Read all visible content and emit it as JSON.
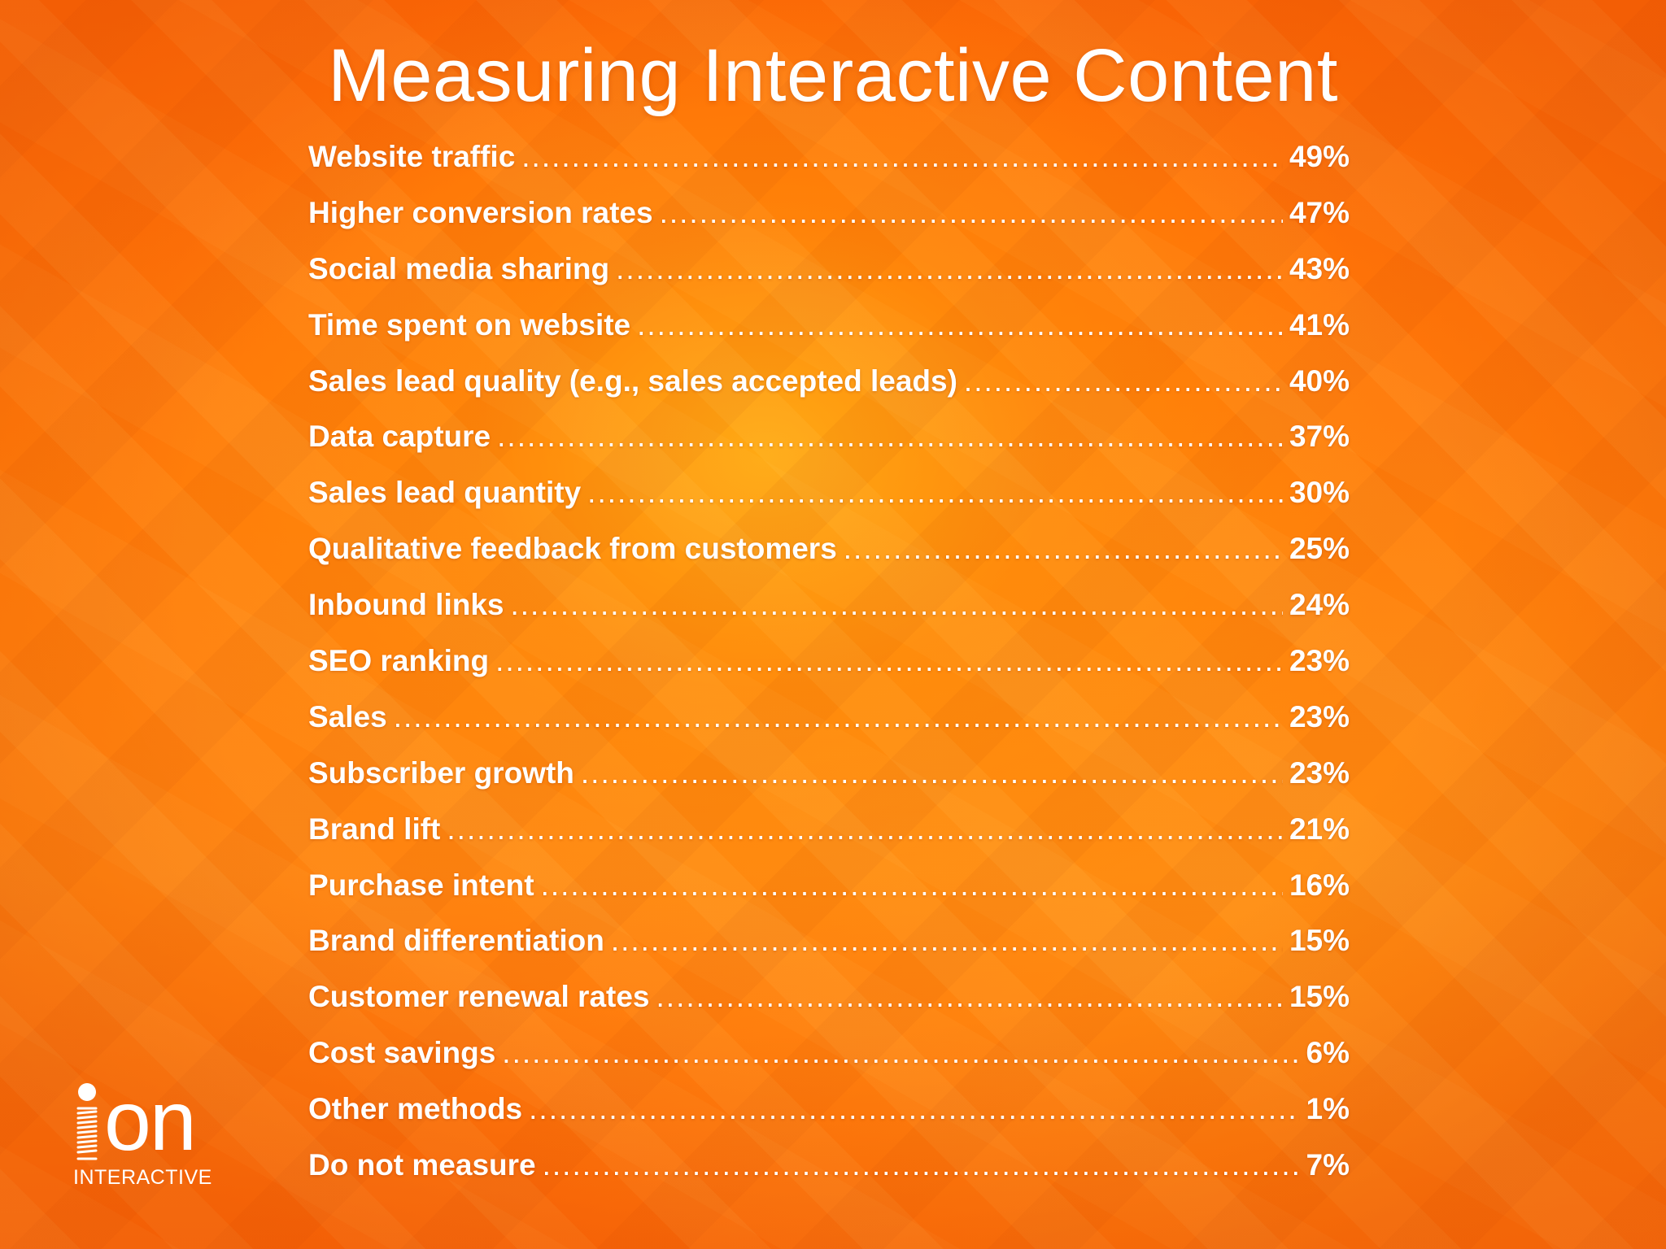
{
  "slide": {
    "title": "Measuring Interactive Content"
  },
  "stats": [
    {
      "label": "Website traffic",
      "value": "49%"
    },
    {
      "label": "Higher conversion rates",
      "value": "47%"
    },
    {
      "label": "Social media sharing",
      "value": "43%"
    },
    {
      "label": "Time spent on website",
      "value": "41%"
    },
    {
      "label": "Sales lead quality (e.g., sales accepted leads)",
      "value": "40%"
    },
    {
      "label": "Data capture",
      "value": "37%"
    },
    {
      "label": "Sales lead quantity",
      "value": "30%"
    },
    {
      "label": "Qualitative feedback from customers",
      "value": "25%"
    },
    {
      "label": "Inbound links",
      "value": "24%"
    },
    {
      "label": "SEO ranking",
      "value": "23%"
    },
    {
      "label": "Sales",
      "value": "23%"
    },
    {
      "label": "Subscriber growth",
      "value": "23%"
    },
    {
      "label": "Brand lift",
      "value": "21%"
    },
    {
      "label": "Purchase intent",
      "value": "16%"
    },
    {
      "label": "Brand differentiation",
      "value": "15%"
    },
    {
      "label": "Customer renewal rates",
      "value": "15%"
    },
    {
      "label": "Cost savings",
      "value": "6%"
    },
    {
      "label": "Other methods",
      "value": "1%"
    },
    {
      "label": "Do not measure",
      "value": "7%"
    }
  ],
  "logo": {
    "word": "on",
    "subtitle": "INTERACTIVE",
    "icon": "ion-spring-i-icon"
  },
  "colors": {
    "background": "#ff7a0c",
    "highlight": "#ffa81a",
    "text": "#ffffff"
  }
}
